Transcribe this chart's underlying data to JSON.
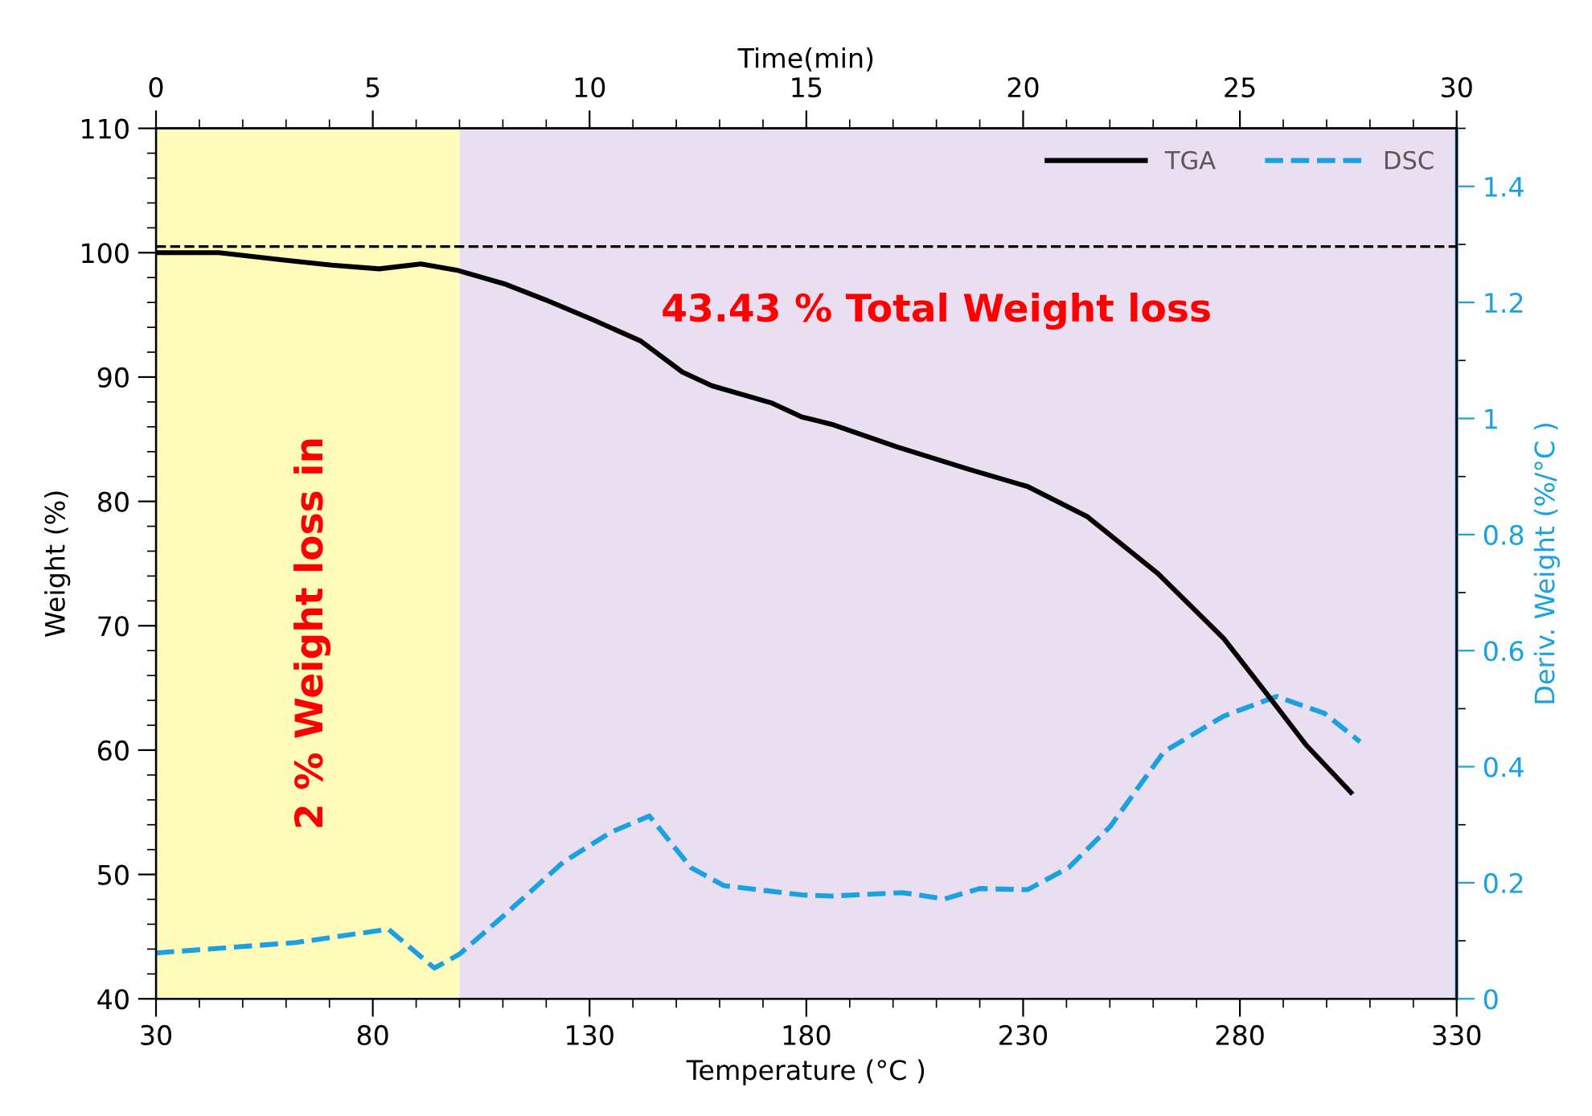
{
  "chart_data": {
    "type": "line",
    "xlabel": "Temperature (°C )",
    "ylabel": "Weight (%)",
    "y2label": "Deriv. Weight (%/°C )",
    "x2label": "Time(min)",
    "xlim": [
      30,
      330
    ],
    "xticks": [
      30,
      80,
      130,
      180,
      230,
      280,
      330
    ],
    "ylim": [
      40,
      110
    ],
    "yticks": [
      40,
      50,
      60,
      70,
      80,
      90,
      100,
      110
    ],
    "y2lim": [
      0,
      1.5
    ],
    "y2ticks": [
      0,
      0.2,
      0.4,
      0.6,
      0.8,
      1,
      1.2,
      1.4
    ],
    "x2lim": [
      0,
      30
    ],
    "x2ticks": [
      0,
      5,
      10,
      15,
      20,
      25,
      30
    ],
    "grid": false,
    "legend": "top right",
    "bands": [
      {
        "axis": "x",
        "from": 30,
        "to": 100,
        "color": "#fffcbb"
      },
      {
        "axis": "x",
        "from": 100,
        "to": 330,
        "color": "#e9dff0"
      }
    ],
    "ref_lines": [
      {
        "axis": "y",
        "value": 100.5,
        "color": "#000000",
        "line_style": "dashed"
      }
    ],
    "annotations": [
      "2 % Weight loss in",
      "43.43 % Total Weight loss"
    ],
    "series": [
      {
        "name": "TGA",
        "color": "#000000",
        "line_style": "solid",
        "x": [
          30,
          44.5,
          59.6,
          70.5,
          81.5,
          91.1,
          99.3,
          110.3,
          119.9,
          130.8,
          141.8,
          151.4,
          158.2,
          172.1,
          178.9,
          185.8,
          200.8,
          217.3,
          231,
          244.7,
          261.1,
          276.2,
          285.8,
          295.3,
          305.6
        ],
        "values": [
          100,
          100,
          99.4,
          99,
          98.7,
          99.1,
          98.6,
          97.5,
          96.2,
          94.6,
          92.9,
          90.4,
          89.3,
          87.9,
          86.8,
          86.2,
          84.4,
          82.6,
          81.2,
          78.8,
          74.2,
          69,
          64.7,
          60.4,
          56.6
        ]
      },
      {
        "name": "DSC",
        "color": "#1ba1e2",
        "line_style": "dashed",
        "axis": "y2",
        "x": [
          30,
          62.3,
          83.6,
          94.2,
          100,
          110.3,
          124,
          134.9,
          143.8,
          153.4,
          161,
          179,
          185.8,
          202.2,
          211.8,
          220,
          231,
          240.5,
          250.1,
          262.5,
          276.2,
          288.5,
          299.5,
          307.7
        ],
        "values": [
          0.079,
          0.097,
          0.12,
          0.053,
          0.077,
          0.144,
          0.236,
          0.287,
          0.315,
          0.226,
          0.195,
          0.179,
          0.177,
          0.183,
          0.172,
          0.19,
          0.188,
          0.226,
          0.297,
          0.426,
          0.487,
          0.521,
          0.492,
          0.443
        ]
      }
    ]
  }
}
